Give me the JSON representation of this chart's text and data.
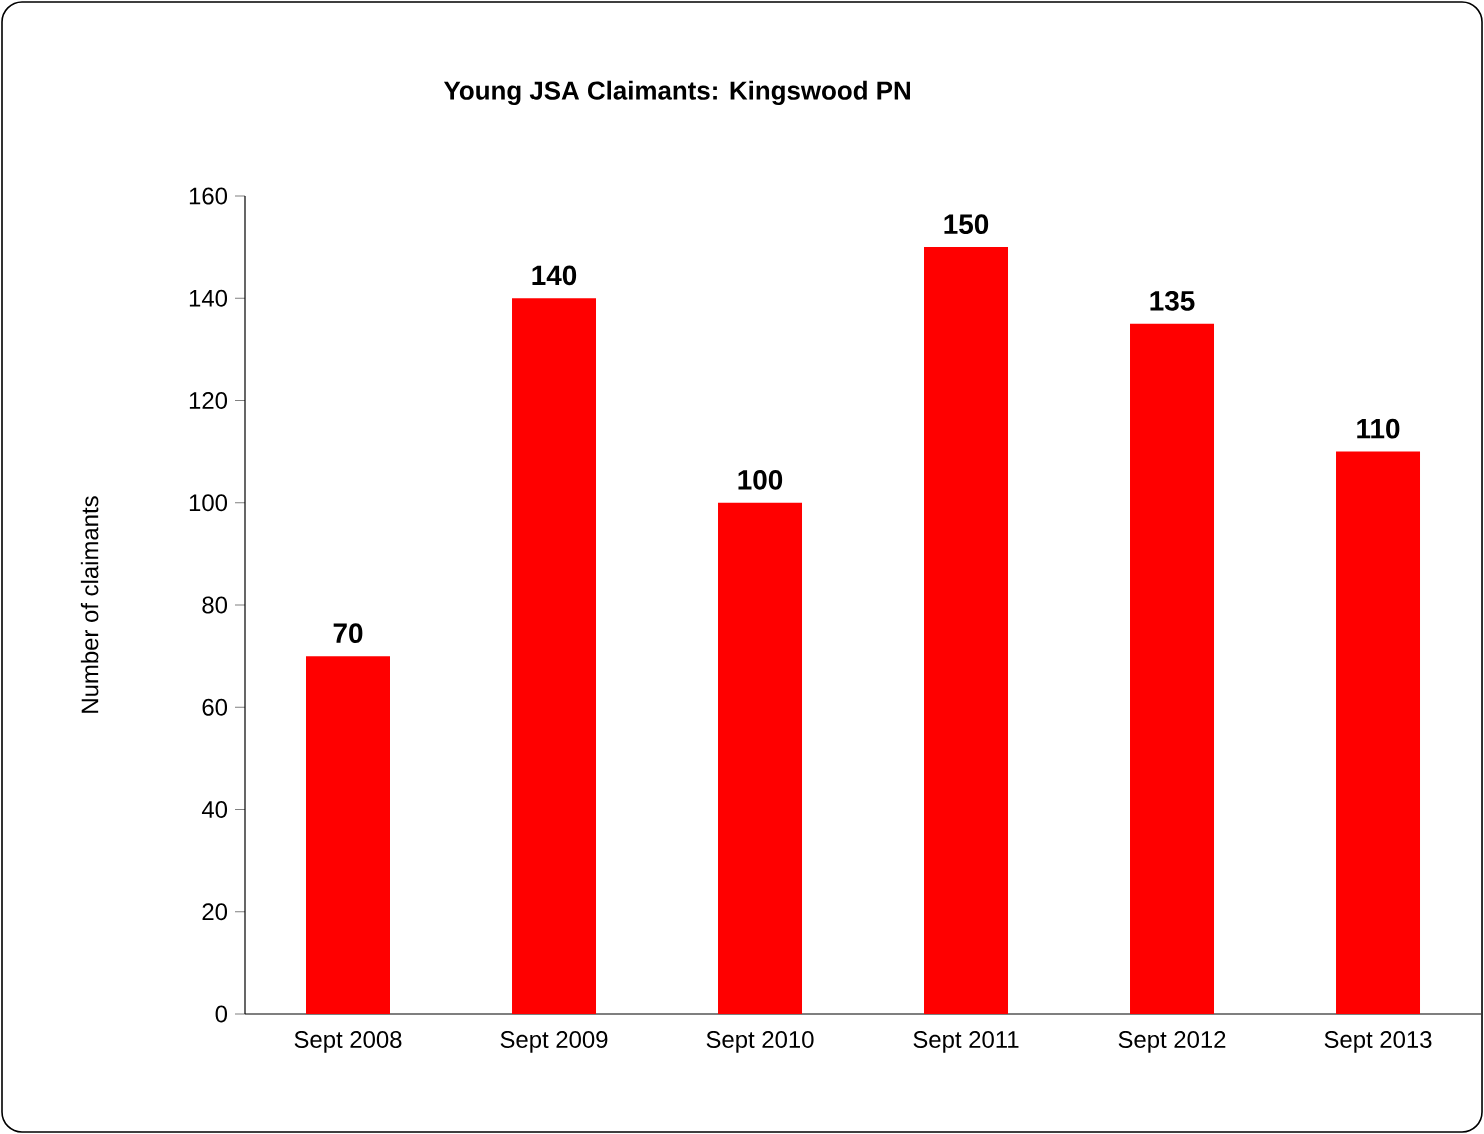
{
  "chart_data": {
    "type": "bar",
    "title": "Young JSA Claimants: Kingswood PN",
    "ylabel": "Number of claimants",
    "categories": [
      "Sept 2008",
      "Sept 2009",
      "Sept 2010",
      "Sept 2011",
      "Sept 2012",
      "Sept 2013"
    ],
    "values": [
      70,
      140,
      100,
      150,
      135,
      110
    ],
    "color": "#ff0000",
    "ylim": [
      0,
      160
    ],
    "yticks": [
      0,
      20,
      40,
      60,
      80,
      100,
      120,
      140,
      160
    ],
    "grid": false,
    "data_labels": true
  }
}
